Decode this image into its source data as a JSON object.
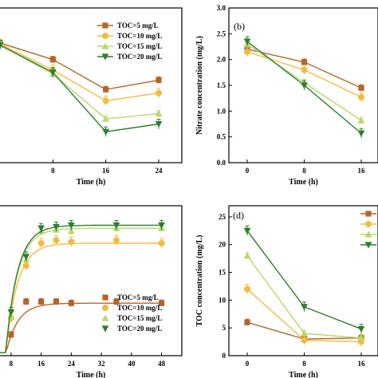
{
  "colors": {
    "s5": "#b5652a",
    "s10": "#f5bb3c",
    "s15": "#b8d86a",
    "s20": "#2e7d2e"
  },
  "chart_data": [
    {
      "panel": "a",
      "type": "line",
      "xlabel": "Time (h)",
      "x_ticks": [
        "8",
        "16",
        "24"
      ],
      "xlim": [
        0,
        24
      ],
      "ylim": [
        0,
        3
      ],
      "legend": "top-right",
      "series": [
        {
          "name": "TOC=5 mg/L",
          "color": "#b5652a",
          "marker": "square",
          "x": [
            0,
            8,
            16,
            24
          ],
          "y": [
            2.32,
            2.0,
            1.42,
            1.6
          ]
        },
        {
          "name": "TOC=10 mg/L",
          "color": "#f5bb3c",
          "marker": "circle",
          "x": [
            0,
            8,
            16,
            24
          ],
          "y": [
            2.3,
            1.8,
            1.2,
            1.35
          ]
        },
        {
          "name": "TOC=15 mg/L",
          "color": "#b8d86a",
          "marker": "triangle-up",
          "x": [
            0,
            8,
            16,
            24
          ],
          "y": [
            2.28,
            1.72,
            0.85,
            0.95
          ]
        },
        {
          "name": "TOC=20 mg/L",
          "color": "#2e7d2e",
          "marker": "triangle-down",
          "x": [
            0,
            8,
            16,
            24
          ],
          "y": [
            2.28,
            1.75,
            0.6,
            0.75
          ]
        }
      ]
    },
    {
      "panel": "b",
      "type": "line",
      "ylabel": "Nitrate concentration (mg/L)",
      "xlabel": "Time (h)",
      "x_ticks": [
        "0",
        "8",
        "16"
      ],
      "y_ticks": [
        "0.0",
        "0.5",
        "1.0",
        "1.5",
        "2.0",
        "2.5",
        "3.0"
      ],
      "xlim": [
        -3,
        19
      ],
      "ylim": [
        0,
        3
      ],
      "series": [
        {
          "name": "TOC=5 mg/L",
          "color": "#b5652a",
          "marker": "square",
          "x": [
            0,
            8,
            16
          ],
          "y": [
            2.2,
            1.95,
            1.45
          ]
        },
        {
          "name": "TOC=10 mg/L",
          "color": "#f5bb3c",
          "marker": "circle",
          "x": [
            0,
            8,
            16
          ],
          "y": [
            2.15,
            1.8,
            1.27
          ]
        },
        {
          "name": "TOC=15 mg/L",
          "color": "#b8d86a",
          "marker": "triangle-up",
          "x": [
            0,
            8,
            16
          ],
          "y": [
            2.3,
            1.55,
            0.82
          ]
        },
        {
          "name": "TOC=20 mg/L",
          "color": "#2e7d2e",
          "marker": "triangle-down",
          "x": [
            0,
            8,
            16
          ],
          "y": [
            2.35,
            1.5,
            0.57
          ]
        }
      ]
    },
    {
      "panel": "c",
      "type": "scatter",
      "xlabel": "Time (h)",
      "x_ticks": [
        "8",
        "16",
        "24",
        "32",
        "40",
        "48"
      ],
      "xlim": [
        4,
        50
      ],
      "ylim": [
        0,
        100
      ],
      "legend": "bottom-right",
      "series": [
        {
          "name": "TOC=5 mg/L",
          "color": "#b5652a",
          "marker": "square",
          "x": [
            8,
            12,
            16,
            20,
            24,
            36,
            48
          ],
          "y": [
            14,
            36,
            36,
            36,
            35,
            36,
            35
          ]
        },
        {
          "name": "TOC=10 mg/L",
          "color": "#f5bb3c",
          "marker": "circle",
          "x": [
            8,
            12,
            16,
            20,
            24,
            36,
            48
          ],
          "y": [
            25,
            60,
            75,
            77,
            76,
            77,
            75
          ]
        },
        {
          "name": "TOC=15 mg/L",
          "color": "#b8d86a",
          "marker": "triangle-up",
          "x": [
            8,
            12,
            16,
            20,
            24,
            36,
            48
          ],
          "y": [
            26,
            64,
            83,
            84,
            83,
            85,
            85
          ]
        },
        {
          "name": "TOC=20 mg/L",
          "color": "#2e7d2e",
          "marker": "triangle-down",
          "x": [
            8,
            12,
            16,
            20,
            24,
            36,
            48
          ],
          "y": [
            29,
            66,
            85,
            86,
            87,
            87,
            87
          ]
        }
      ]
    },
    {
      "panel": "d",
      "type": "line",
      "ylabel": "TOC concentration (mg/L)",
      "xlabel": "Time (h)",
      "x_ticks": [
        "0",
        "8",
        "16"
      ],
      "y_ticks": [
        "0",
        "5",
        "10",
        "15",
        "20",
        "25"
      ],
      "xlim": [
        -3,
        19
      ],
      "ylim": [
        0,
        27
      ],
      "legend": "top-right",
      "series": [
        {
          "name": "TOC=5 mg/L",
          "color": "#b5652a",
          "marker": "square",
          "x": [
            0,
            8,
            16
          ],
          "y": [
            6.0,
            3.0,
            3.2
          ]
        },
        {
          "name": "TOC=10 mg/L",
          "color": "#f5bb3c",
          "marker": "circle",
          "x": [
            0,
            8,
            16
          ],
          "y": [
            12.0,
            2.8,
            2.5
          ]
        },
        {
          "name": "TOC=15 mg/L",
          "color": "#b8d86a",
          "marker": "triangle-up",
          "x": [
            0,
            8,
            16
          ],
          "y": [
            18.0,
            4.0,
            3.2
          ]
        },
        {
          "name": "TOC=20 mg/L",
          "color": "#2e7d2e",
          "marker": "triangle-down",
          "x": [
            0,
            8,
            16
          ],
          "y": [
            22.5,
            8.8,
            4.8
          ]
        }
      ]
    }
  ],
  "panels": {
    "b_label": "(b)",
    "d_label": "(d)"
  }
}
